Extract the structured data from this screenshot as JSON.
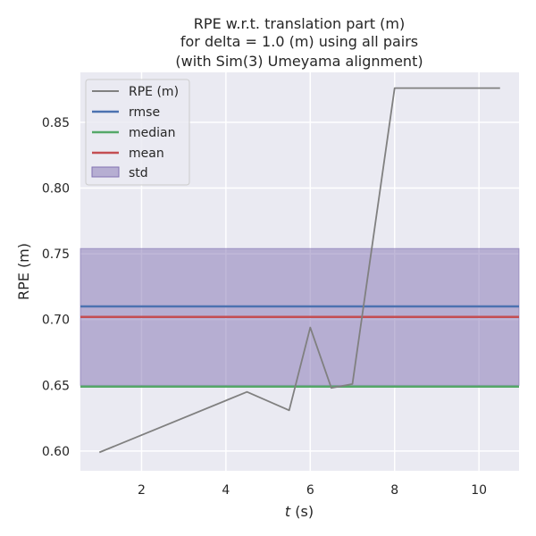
{
  "chart_data": {
    "type": "line",
    "title": [
      "RPE w.r.t. translation part (m)",
      "for delta = 1.0 (m) using all pairs",
      "(with Sim(3) Umeyama alignment)"
    ],
    "xlabel_var": "t",
    "xlabel_unit": " (s)",
    "ylabel": "RPE (m)",
    "xlim": [
      0.55,
      10.95
    ],
    "ylim": [
      0.585,
      0.888
    ],
    "xticks": [
      2,
      4,
      6,
      8,
      10
    ],
    "yticks": [
      0.6,
      0.65,
      0.7,
      0.75,
      0.8,
      0.85
    ],
    "xtick_labels": [
      "2",
      "4",
      "6",
      "8",
      "10"
    ],
    "ytick_labels": [
      "0.60",
      "0.65",
      "0.70",
      "0.75",
      "0.80",
      "0.85"
    ],
    "grid": true,
    "legend_placement": "top-left",
    "series": [
      {
        "name": "RPE (m)",
        "color": "#808080",
        "x": [
          1.0,
          4.5,
          5.5,
          6.0,
          6.5,
          7.0,
          8.0,
          10.5
        ],
        "y": [
          0.599,
          0.645,
          0.631,
          0.694,
          0.648,
          0.651,
          0.876,
          0.876
        ]
      }
    ],
    "stats": {
      "rmse": {
        "name": "rmse",
        "value": 0.71,
        "color": "#4c72b0"
      },
      "median": {
        "name": "median",
        "value": 0.649,
        "color": "#55a868"
      },
      "mean": {
        "name": "mean",
        "value": 0.702,
        "color": "#c44e52"
      },
      "std": {
        "name": "std",
        "lower": 0.65,
        "upper": 0.754,
        "color": "#8172b2"
      }
    }
  }
}
